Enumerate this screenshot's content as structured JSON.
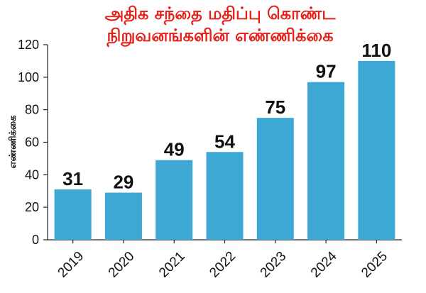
{
  "chart_data": {
    "type": "bar",
    "title_lines": [
      "அதிக சந்தை மதிப்பு கொண்ட",
      "நிறுவனங்களின் எண்ணிக்கை"
    ],
    "xlabel": "",
    "ylabel": "எண்ணிக்கை",
    "categories": [
      "2019",
      "2020",
      "2021",
      "2022",
      "2023",
      "2024",
      "2025"
    ],
    "values": [
      31,
      29,
      49,
      54,
      75,
      97,
      110
    ],
    "ylim": [
      0,
      120
    ],
    "yticks": [
      0,
      20,
      40,
      60,
      80,
      100,
      120
    ],
    "grid": false,
    "bar_color": "#3da8d4",
    "title_color": "#e32119"
  }
}
